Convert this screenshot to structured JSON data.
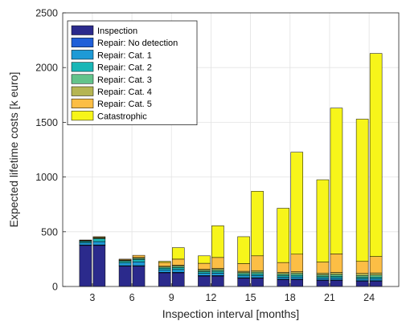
{
  "chart_data": {
    "type": "bar",
    "stacked": true,
    "xlabel": "Inspection interval [months]",
    "ylabel": "Expected lifetime costs [k euro]",
    "ylim": [
      0,
      2500
    ],
    "yticks": [
      0,
      500,
      1000,
      1500,
      2000,
      2500
    ],
    "grid": true,
    "legend_position": "top-left",
    "categories": [
      "3",
      "6",
      "9",
      "12",
      "15",
      "18",
      "21",
      "24"
    ],
    "bars_per_category": 2,
    "series": [
      {
        "name": "Inspection",
        "color": "#2b2a8c",
        "values": [
          [
            375,
            375
          ],
          [
            185,
            185
          ],
          [
            125,
            125
          ],
          [
            95,
            95
          ],
          [
            75,
            75
          ],
          [
            62,
            62
          ],
          [
            55,
            55
          ],
          [
            48,
            48
          ]
        ]
      },
      {
        "name": "Repair: No detection",
        "color": "#1f5fd8",
        "values": [
          [
            5,
            5
          ],
          [
            5,
            5
          ],
          [
            5,
            5
          ],
          [
            5,
            5
          ],
          [
            5,
            5
          ],
          [
            5,
            5
          ],
          [
            5,
            5
          ],
          [
            5,
            5
          ]
        ]
      },
      {
        "name": "Repair: Cat. 1",
        "color": "#1e9ad6",
        "values": [
          [
            20,
            30
          ],
          [
            25,
            35
          ],
          [
            22,
            25
          ],
          [
            20,
            22
          ],
          [
            18,
            20
          ],
          [
            18,
            20
          ],
          [
            17,
            18
          ],
          [
            17,
            18
          ]
        ]
      },
      {
        "name": "Repair: Cat. 2",
        "color": "#19b6b6",
        "values": [
          [
            12,
            25
          ],
          [
            15,
            22
          ],
          [
            15,
            18
          ],
          [
            15,
            17
          ],
          [
            15,
            16
          ],
          [
            15,
            16
          ],
          [
            14,
            15
          ],
          [
            14,
            15
          ]
        ]
      },
      {
        "name": "Repair: Cat. 3",
        "color": "#63c38b",
        "values": [
          [
            5,
            8
          ],
          [
            8,
            10
          ],
          [
            10,
            12
          ],
          [
            12,
            14
          ],
          [
            14,
            15
          ],
          [
            15,
            16
          ],
          [
            16,
            17
          ],
          [
            17,
            18
          ]
        ]
      },
      {
        "name": "Repair: Cat. 4",
        "color": "#b5b552",
        "values": [
          [
            3,
            5
          ],
          [
            5,
            8
          ],
          [
            8,
            10
          ],
          [
            10,
            12
          ],
          [
            12,
            14
          ],
          [
            14,
            16
          ],
          [
            16,
            18
          ],
          [
            18,
            20
          ]
        ]
      },
      {
        "name": "Repair: Cat. 5",
        "color": "#fcbe45",
        "values": [
          [
            5,
            7
          ],
          [
            7,
            20
          ],
          [
            35,
            55
          ],
          [
            55,
            100
          ],
          [
            70,
            135
          ],
          [
            90,
            160
          ],
          [
            100,
            170
          ],
          [
            110,
            150
          ]
        ]
      },
      {
        "name": "Catastrophic",
        "color": "#f7f51a",
        "values": [
          [
            0,
            0
          ],
          [
            0,
            0
          ],
          [
            10,
            105
          ],
          [
            68,
            290
          ],
          [
            246,
            590
          ],
          [
            496,
            932
          ],
          [
            752,
            1332
          ],
          [
            1300,
            1855
          ]
        ]
      }
    ]
  }
}
